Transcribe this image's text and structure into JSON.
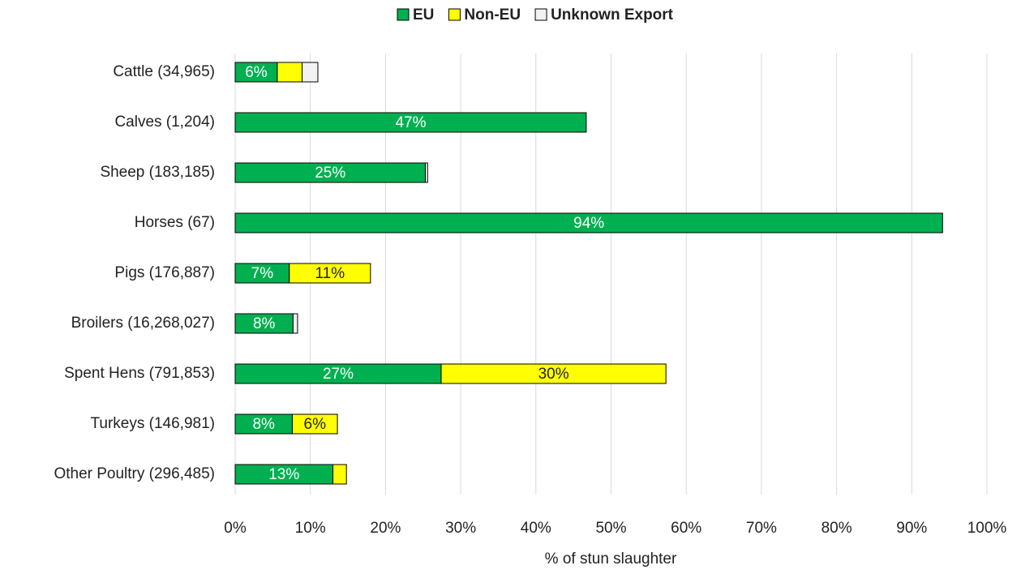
{
  "chart_data": {
    "type": "stacked_barh",
    "categories": [
      "Cattle (34,965)",
      "Calves (1,204)",
      "Sheep (183,185)",
      "Horses (67)",
      "Pigs (176,887)",
      "Broilers (16,268,027)",
      "Spent Hens (791,853)",
      "Turkeys (146,981)",
      "Other Poultry (296,485)"
    ],
    "series": [
      {
        "name": "EU",
        "color": "#00b050",
        "values": [
          5.6,
          46.7,
          25.3,
          94.1,
          7.2,
          7.7,
          27.4,
          7.6,
          13.0
        ],
        "value_labels": [
          "6%",
          "47%",
          "25%",
          "94%",
          "7%",
          "8%",
          "27%",
          "8%",
          "13%"
        ]
      },
      {
        "name": "Non-EU",
        "color": "#ffff00",
        "values": [
          3.3,
          0,
          0,
          0,
          10.8,
          0,
          29.9,
          6.0,
          1.8
        ],
        "value_labels": [
          null,
          null,
          null,
          null,
          "11%",
          null,
          "30%",
          "6%",
          null
        ]
      },
      {
        "name": "Unknown Export",
        "color": "#f2f2f2",
        "values": [
          2.1,
          0,
          0.3,
          0,
          0,
          0.6,
          0,
          0,
          0
        ]
      }
    ],
    "xlabel": "% of stun slaughter",
    "xlim": [
      0,
      100
    ],
    "xticks": [
      {
        "value": 0,
        "label": "0%"
      },
      {
        "value": 10,
        "label": "10%"
      },
      {
        "value": 20,
        "label": "20%"
      },
      {
        "value": 30,
        "label": "30%"
      },
      {
        "value": 40,
        "label": "40%"
      },
      {
        "value": 50,
        "label": "50%"
      },
      {
        "value": 60,
        "label": "60%"
      },
      {
        "value": 70,
        "label": "70%"
      },
      {
        "value": 80,
        "label": "80%"
      },
      {
        "value": 90,
        "label": "90%"
      },
      {
        "value": 100,
        "label": "100%"
      }
    ],
    "grid": true,
    "legend": "top"
  }
}
